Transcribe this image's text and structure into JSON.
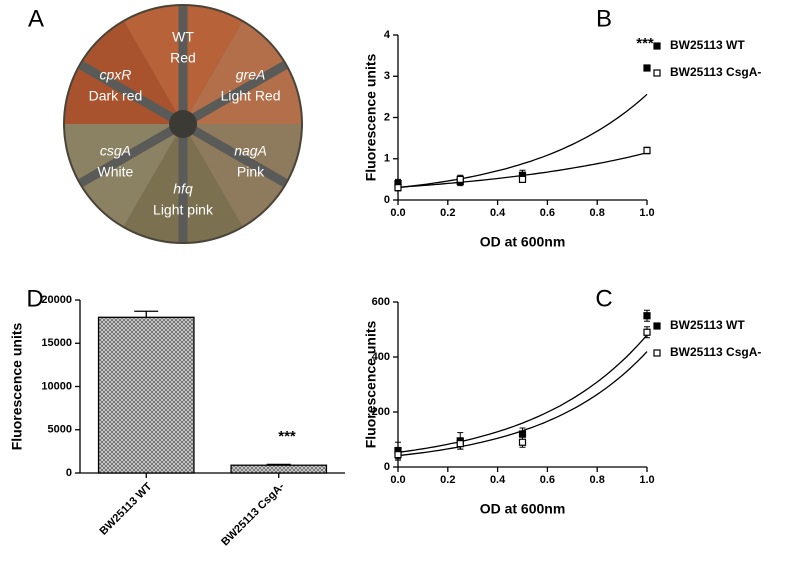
{
  "plate": {
    "panel": "A",
    "sectors": [
      {
        "gene": "WT",
        "phenotype": "Red",
        "color": "#b8623a"
      },
      {
        "gene": "greA",
        "phenotype": "Light Red",
        "color": "#b36f49"
      },
      {
        "gene": "nagA",
        "phenotype": "Pink",
        "color": "#8e7a5c"
      },
      {
        "gene": "hfq",
        "phenotype": "Light pink",
        "color": "#7b7050"
      },
      {
        "gene": "csgA",
        "phenotype": "White",
        "color": "#8a8262"
      },
      {
        "gene": "cpxR",
        "phenotype": "Dark red",
        "color": "#a8532e"
      }
    ]
  },
  "chart_data": [
    {
      "type": "line",
      "panel": "B",
      "xlabel": "OD at 600nm",
      "ylabel": "Fluorescence units",
      "annotation": "***",
      "x": [
        0,
        0.25,
        0.5,
        1
      ],
      "series": [
        {
          "name": "BW25113 WT",
          "color": "#000000",
          "fill": "#000000",
          "values": [
            0.4,
            0.45,
            0.6,
            3.2
          ],
          "errors": [
            0.1,
            0.1,
            0.12,
            0.06
          ]
        },
        {
          "name": "BW25113 CsgA-",
          "color": "#000000",
          "fill": "#ffffff",
          "values": [
            0.3,
            0.5,
            0.5,
            1.2
          ],
          "errors": [
            0.08,
            0.1,
            0.06,
            0.08
          ]
        }
      ],
      "xlim": [
        0,
        1
      ],
      "xticks": [
        {
          "value": 0,
          "label": "0.0"
        },
        0.2,
        0.4,
        0.6,
        0.8,
        {
          "value": 1,
          "label": "1.0"
        }
      ],
      "ylim": [
        0,
        4
      ],
      "yticks": [
        0,
        1,
        2,
        3,
        4
      ]
    },
    {
      "type": "line",
      "panel": "C",
      "xlabel": "OD at 600nm",
      "ylabel": "Fluorescence units",
      "x": [
        0,
        0.25,
        0.5,
        1
      ],
      "series": [
        {
          "name": "BW25113 WT",
          "color": "#000000",
          "fill": "#000000",
          "values": [
            60,
            95,
            120,
            550
          ],
          "errors": [
            30,
            30,
            22,
            20
          ]
        },
        {
          "name": "BW25113 CsgA-",
          "color": "#000000",
          "fill": "#ffffff",
          "values": [
            45,
            85,
            90,
            490
          ],
          "errors": [
            20,
            20,
            18,
            20
          ]
        }
      ],
      "xlim": [
        0,
        1
      ],
      "xticks": [
        {
          "value": 0,
          "label": "0.0"
        },
        0.2,
        0.4,
        0.6,
        0.8,
        {
          "value": 1,
          "label": "1.0"
        }
      ],
      "ylim": [
        0,
        600
      ],
      "yticks": [
        0,
        200,
        400,
        600
      ]
    },
    {
      "type": "bar",
      "panel": "D",
      "ylabel": "Fluorescence units",
      "annotation": "***",
      "categories": [
        "BW25113 WT",
        "BW25113 CsgA-"
      ],
      "values": [
        18000,
        900
      ],
      "errors": [
        700,
        100
      ],
      "ylim": [
        0,
        20000
      ],
      "yticks": [
        0,
        5000,
        10000,
        15000,
        20000
      ]
    }
  ]
}
